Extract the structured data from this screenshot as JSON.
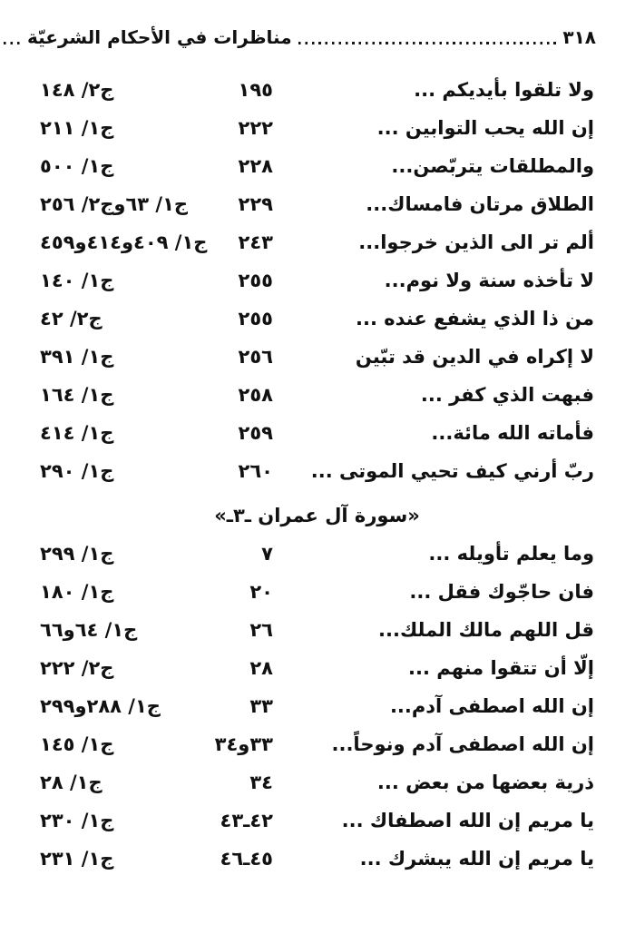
{
  "page_header": {
    "title": "مناظرات في الأحكام الشرعيّة",
    "page_number": "٣١٨"
  },
  "index": {
    "sections": [
      {
        "header": null,
        "rows": [
          {
            "verse": "ولا تلقوا بأيديكم ...",
            "ayah": "١٩٥",
            "ref": "ج٢/ ١٤٨"
          },
          {
            "verse": "إن الله يحب التوابين ...",
            "ayah": "٢٢٢",
            "ref": "ج١/ ٢١١"
          },
          {
            "verse": "والمطلقات يتربّصن...",
            "ayah": "٢٢٨",
            "ref": "ج١/ ٥٠٠"
          },
          {
            "verse": "الطلاق مرتان فامساك...",
            "ayah": "٢٢٩",
            "ref": "ج١/ ٦٣وج٢/ ٢٥٦"
          },
          {
            "verse": "ألم تر الى الذين خرجوا...",
            "ayah": "٢٤٣",
            "ref": "ج١/ ٤٠٩و٤١٤و٤٥٩"
          },
          {
            "verse": "لا تأخذه سنة ولا نوم...",
            "ayah": "٢٥٥",
            "ref": "ج١/ ١٤٠"
          },
          {
            "verse": "من ذا الذي يشفع عنده ...",
            "ayah": "٢٥٥",
            "ref": "ج٢/ ٤٢"
          },
          {
            "verse": "لا إكراه في الدين قد تبّين",
            "ayah": "٢٥٦",
            "ref": "ج١/ ٣٩١"
          },
          {
            "verse": "فبهت الذي كفر ...",
            "ayah": "٢٥٨",
            "ref": "ج١/ ١٦٤"
          },
          {
            "verse": "فأماته الله مائة...",
            "ayah": "٢٥٩",
            "ref": "ج١/ ٤١٤"
          },
          {
            "verse": "ربّ أرني كيف تحيي الموتى ...",
            "ayah": "٢٦٠",
            "ref": "ج١/ ٢٩٠"
          }
        ]
      },
      {
        "header": "«سورة آل عمران ـ٣ـ»",
        "rows": [
          {
            "verse": "وما يعلم تأويله ...",
            "ayah": "٧",
            "ref": "ج١/ ٢٩٩"
          },
          {
            "verse": "فان حاجّوك فقل ...",
            "ayah": "٢٠",
            "ref": "ج١/ ١٨٠"
          },
          {
            "verse": "قل اللهم مالك الملك...",
            "ayah": "٢٦",
            "ref": "ج١/ ٦٤و٦٦"
          },
          {
            "verse": "إلّا أن تتقوا منهم ...",
            "ayah": "٢٨",
            "ref": "ج٢/ ٢٢٢"
          },
          {
            "verse": "إن الله اصطفى آدم...",
            "ayah": "٣٣",
            "ref": "ج١/ ٢٨٨و٢٩٩"
          },
          {
            "verse": "إن الله اصطفى آدم ونوحاً...",
            "ayah": "٣٣و٣٤",
            "ref": "ج١/ ١٤٥"
          },
          {
            "verse": "ذرية بعضها من بعض ...",
            "ayah": "٣٤",
            "ref": "ج١/ ٢٨"
          },
          {
            "verse": "يا مريم إن الله اصطفاك ...",
            "ayah": "٤٢ـ٤٣",
            "ref": "ج١/ ٢٣٠"
          },
          {
            "verse": "يا مريم إن الله يبشرك ...",
            "ayah": "٤٥ـ٤٦",
            "ref": "ج١/ ٢٣١"
          }
        ]
      }
    ]
  }
}
